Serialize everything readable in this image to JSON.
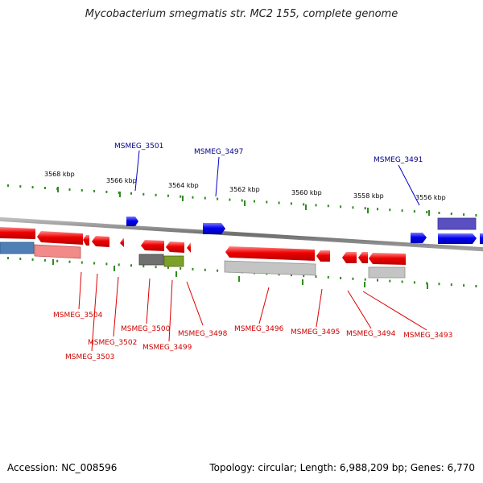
{
  "title": "Mycobacterium smegmatis str. MC2 155, complete genome",
  "footer": {
    "accession_label": "Accession: NC_008596",
    "summary": "Topology: circular; Length: 6,988,209 bp; Genes: 6,770"
  },
  "colors": {
    "forward_gene": "#0000ee",
    "reverse_gene": "#ee0000",
    "tick": "#2e8b1e",
    "backbone": "#808080",
    "label_forward": "#00008b",
    "label_reverse": "#cc0000"
  },
  "ruler_labels": [
    "3568 kbp",
    "3566 kbp",
    "3564 kbp",
    "3562 kbp",
    "3560 kbp",
    "3558 kbp",
    "3556 kbp"
  ],
  "gene_labels_top": [
    "MSMEG_3501",
    "MSMEG_3497",
    "MSMEG_3491"
  ],
  "gene_labels_bottom": [
    "MSMEG_3504",
    "MSMEG_3502",
    "MSMEG_3503",
    "MSMEG_3500",
    "MSMEG_3499",
    "MSMEG_3498",
    "MSMEG_3496",
    "MSMEG_3495",
    "MSMEG_3494",
    "MSMEG_3493"
  ]
}
